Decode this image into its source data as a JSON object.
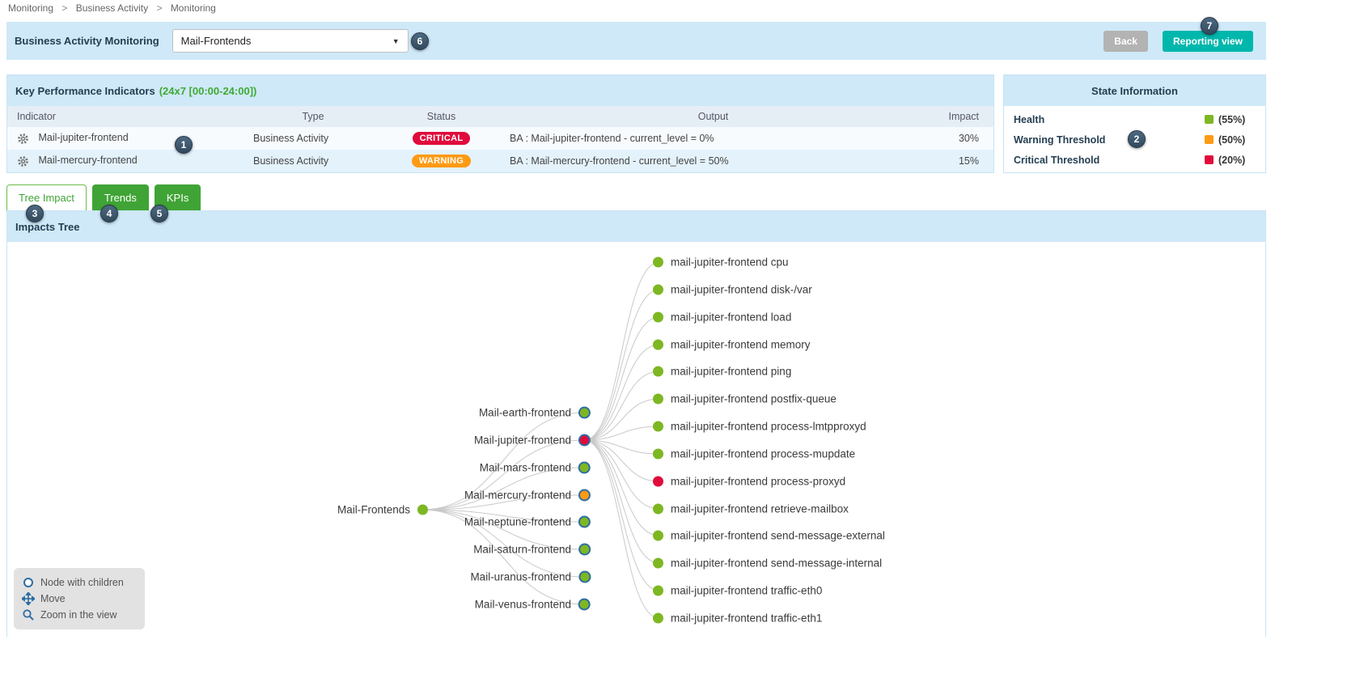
{
  "breadcrumb": {
    "items": [
      "Monitoring",
      "Business Activity",
      "Monitoring"
    ],
    "separator": ">"
  },
  "header": {
    "title": "Business Activity Monitoring",
    "ba_select_value": "Mail-Frontends",
    "back_label": "Back",
    "reporting_label": "Reporting view"
  },
  "kpi": {
    "title": "Key Performance Indicators",
    "period": "(24x7 [00:00-24:00])",
    "columns": [
      "Indicator",
      "Type",
      "Status",
      "Output",
      "Impact"
    ],
    "rows": [
      {
        "indicator": "Mail-jupiter-frontend",
        "type": "Business Activity",
        "status": "CRITICAL",
        "output": "BA : Mail-jupiter-frontend - current_level = 0%",
        "impact": "30%"
      },
      {
        "indicator": "Mail-mercury-frontend",
        "type": "Business Activity",
        "status": "WARNING",
        "output": "BA : Mail-mercury-frontend - current_level = 50%",
        "impact": "15%"
      }
    ]
  },
  "state_info": {
    "title": "State Information",
    "rows": [
      {
        "label": "Health",
        "value": "(55%)",
        "color": "#7db722"
      },
      {
        "label": "Warning Threshold",
        "value": "(50%)",
        "color": "#ff9a13"
      },
      {
        "label": "Critical Threshold",
        "value": "(20%)",
        "color": "#e00b3c"
      }
    ]
  },
  "tabs": [
    {
      "label": "Tree Impact",
      "active": true
    },
    {
      "label": "Trends",
      "active": false
    },
    {
      "label": "KPIs",
      "active": false
    }
  ],
  "tree": {
    "title": "Impacts Tree",
    "root": {
      "label": "Mail-Frontends",
      "status": "ok"
    },
    "children": [
      {
        "label": "Mail-earth-frontend",
        "status": "ok"
      },
      {
        "label": "Mail-jupiter-frontend",
        "status": "critical"
      },
      {
        "label": "Mail-mars-frontend",
        "status": "ok"
      },
      {
        "label": "Mail-mercury-frontend",
        "status": "warning"
      },
      {
        "label": "Mail-neptune-frontend",
        "status": "ok"
      },
      {
        "label": "Mail-saturn-frontend",
        "status": "ok"
      },
      {
        "label": "Mail-uranus-frontend",
        "status": "ok"
      },
      {
        "label": "Mail-venus-frontend",
        "status": "ok"
      }
    ],
    "leaves": [
      {
        "label": "mail-jupiter-frontend cpu",
        "status": "ok"
      },
      {
        "label": "mail-jupiter-frontend disk-/var",
        "status": "ok"
      },
      {
        "label": "mail-jupiter-frontend load",
        "status": "ok"
      },
      {
        "label": "mail-jupiter-frontend memory",
        "status": "ok"
      },
      {
        "label": "mail-jupiter-frontend ping",
        "status": "ok"
      },
      {
        "label": "mail-jupiter-frontend postfix-queue",
        "status": "ok"
      },
      {
        "label": "mail-jupiter-frontend process-lmtpproxyd",
        "status": "ok"
      },
      {
        "label": "mail-jupiter-frontend process-mupdate",
        "status": "ok"
      },
      {
        "label": "mail-jupiter-frontend process-proxyd",
        "status": "critical"
      },
      {
        "label": "mail-jupiter-frontend retrieve-mailbox",
        "status": "ok"
      },
      {
        "label": "mail-jupiter-frontend send-message-external",
        "status": "ok"
      },
      {
        "label": "mail-jupiter-frontend send-message-internal",
        "status": "ok"
      },
      {
        "label": "mail-jupiter-frontend traffic-eth0",
        "status": "ok"
      },
      {
        "label": "mail-jupiter-frontend traffic-eth1",
        "status": "ok"
      }
    ],
    "legend": [
      {
        "icon": "node-circle-icon",
        "label": "Node with children"
      },
      {
        "icon": "move-icon",
        "label": "Move"
      },
      {
        "icon": "zoom-icon",
        "label": "Zoom in the view"
      }
    ]
  },
  "annotations": [
    "1",
    "2",
    "3",
    "4",
    "5",
    "6",
    "7"
  ],
  "colors": {
    "ok_green": "#7db722",
    "warning_orange": "#ff9a13",
    "critical_red": "#e00b3c",
    "tab_green": "#3fa435",
    "header_blue": "#cfe9f8",
    "reporting_teal": "#00b7ac",
    "back_gray": "#b3b3b3"
  }
}
